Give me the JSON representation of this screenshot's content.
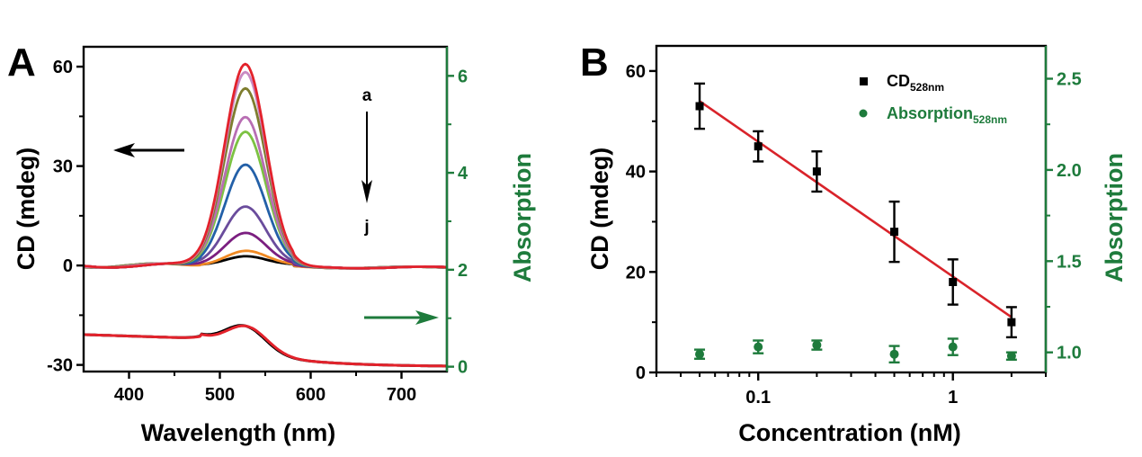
{
  "figure": {
    "panels": [
      "A",
      "B"
    ]
  },
  "colors": {
    "axis_black": "#000000",
    "axis_green": "#1e7b3c",
    "fit_red": "#d9232a"
  },
  "chart_data": [
    {
      "panel": "A",
      "type": "line",
      "xlabel": "Wavelength (nm)",
      "ylabel": "CD (mdeg)",
      "y2label": "Absorption",
      "xlim": [
        350,
        750
      ],
      "ylim": [
        -32,
        66
      ],
      "y2lim": [
        -0.1,
        6.6
      ],
      "xticks": [
        400,
        500,
        600,
        700
      ],
      "yticks": [
        -30,
        0,
        30,
        60
      ],
      "y2ticks": [
        0,
        2,
        4,
        6
      ],
      "annotations": {
        "top_label": "a",
        "bottom_label": "j",
        "arrow_direction": "down"
      },
      "axis_arrows": {
        "cd_arrow": "left",
        "absorption_arrow": "right"
      },
      "cd_series": [
        {
          "name": "a",
          "color": "#e3222b",
          "peak_nm": 528,
          "peak_mdeg": 61
        },
        {
          "name": "b",
          "color": "#c98ac2",
          "peak_nm": 528,
          "peak_mdeg": 58.5
        },
        {
          "name": "c",
          "color": "#7e7d2e",
          "peak_nm": 528,
          "peak_mdeg": 53.5
        },
        {
          "name": "d",
          "color": "#b86eb3",
          "peak_nm": 528,
          "peak_mdeg": 45
        },
        {
          "name": "e",
          "color": "#7cc242",
          "peak_nm": 528,
          "peak_mdeg": 40.5
        },
        {
          "name": "f",
          "color": "#2360a8",
          "peak_nm": 528,
          "peak_mdeg": 30.5
        },
        {
          "name": "g",
          "color": "#6a4c9c",
          "peak_nm": 528,
          "peak_mdeg": 18
        },
        {
          "name": "h",
          "color": "#7b1f80",
          "peak_nm": 528,
          "peak_mdeg": 10
        },
        {
          "name": "i",
          "color": "#f08a24",
          "peak_nm": 528,
          "peak_mdeg": 4.5
        },
        {
          "name": "j",
          "color": "#000000",
          "peak_nm": 528,
          "peak_mdeg": 3
        }
      ],
      "absorption_series": [
        {
          "name": "abs-black",
          "color": "#000000",
          "peak_nm": 528,
          "peak_abs": 1.05,
          "baseline_400": 0.62,
          "end_750": 0.0
        },
        {
          "name": "abs-red",
          "color": "#e3222b",
          "peak_nm": 530,
          "peak_abs": 1.05,
          "baseline_400": 0.62,
          "end_750": 0.0
        }
      ]
    },
    {
      "panel": "B",
      "type": "scatter",
      "xlabel": "Concentration (nM)",
      "ylabel": "CD (mdeg)",
      "y2label": "Absorption",
      "xscale": "log",
      "xlim": [
        0.03,
        3
      ],
      "ylim": [
        0,
        65
      ],
      "y2lim": [
        0.89,
        2.68
      ],
      "xticks": [
        0.1,
        1
      ],
      "xtick_labels": [
        "0.1",
        "1"
      ],
      "yticks": [
        0,
        20,
        40,
        60
      ],
      "y2ticks": [
        1.0,
        1.5,
        2.0,
        2.5
      ],
      "y2tick_labels": [
        "1.0",
        "1.5",
        "2.0",
        "2.5"
      ],
      "legend": {
        "position": "top-right",
        "entries": [
          {
            "label": "CD",
            "subscript": "528nm",
            "marker": "square",
            "color": "#000000"
          },
          {
            "label": "Absorption",
            "subscript": "528nm",
            "marker": "circle",
            "color": "#1e7b3c"
          }
        ]
      },
      "x": [
        0.05,
        0.1,
        0.2,
        0.5,
        1,
        2
      ],
      "series": [
        {
          "name": "CD528nm",
          "axis": "left",
          "color": "#000000",
          "values": [
            53,
            45,
            40,
            28,
            18,
            10
          ],
          "errors": [
            4.5,
            3,
            4,
            6,
            4.5,
            3
          ]
        },
        {
          "name": "Absorption528nm",
          "axis": "right",
          "color": "#1e7b3c",
          "values": [
            0.99,
            1.03,
            1.04,
            0.99,
            1.03,
            0.98
          ],
          "errors": [
            0.025,
            0.035,
            0.025,
            0.045,
            0.045,
            0.02
          ]
        }
      ],
      "fit": {
        "type": "linear-in-log-x",
        "color": "#d9232a",
        "x_range": [
          0.05,
          2
        ],
        "y_start": 54,
        "y_end": 11
      }
    }
  ]
}
